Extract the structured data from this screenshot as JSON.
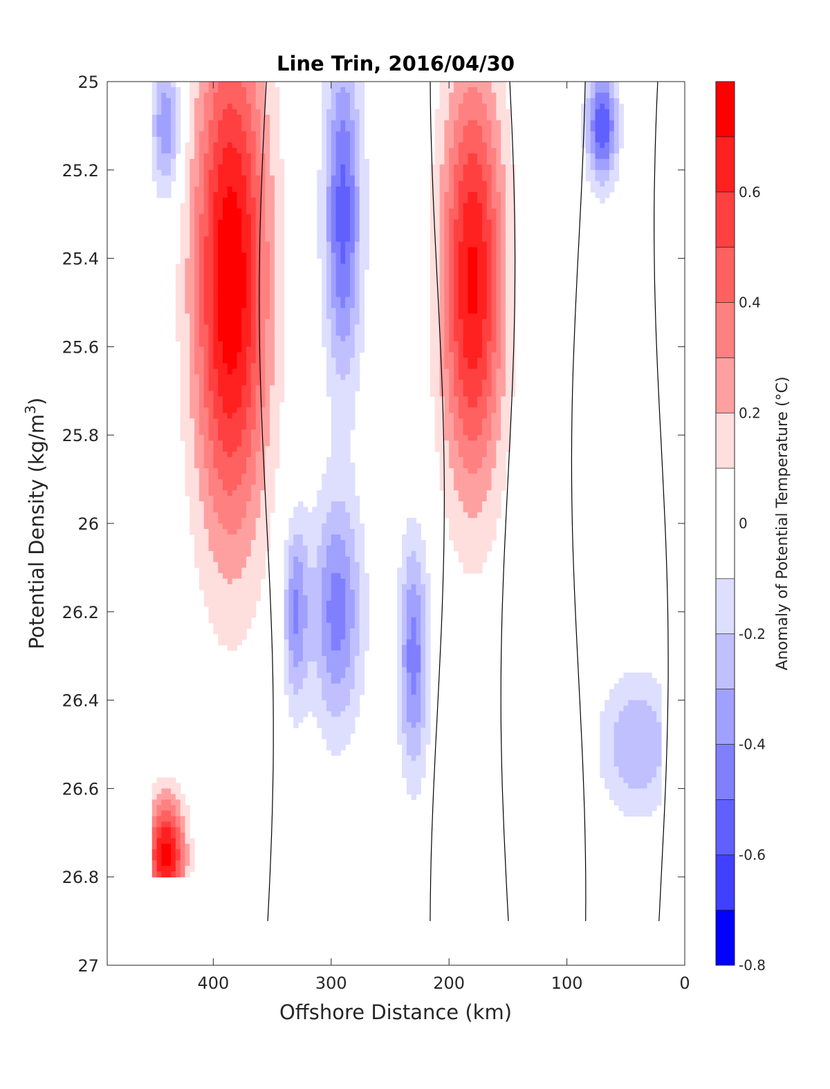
{
  "chart_data": {
    "type": "heatmap",
    "subtype": "filled-contour",
    "title": "Line Trin, 2016/04/30",
    "xlabel": "Offshore Distance (km)",
    "ylabel": "Potential Density (kg/m^3)",
    "ylabel_parts": {
      "text": "Potential Density (kg/m",
      "superscript": "3",
      "suffix": ")"
    },
    "xlim": [
      490,
      0
    ],
    "x_reversed": true,
    "ylim": [
      25,
      27
    ],
    "y_reversed": true,
    "x_tick_values": [
      400,
      300,
      200,
      100,
      0
    ],
    "x_tick_labels": [
      "400",
      "300",
      "200",
      "100",
      "0"
    ],
    "y_tick_values": [
      25,
      25.2,
      25.4,
      25.6,
      25.8,
      26,
      26.2,
      26.4,
      26.6,
      26.8,
      27
    ],
    "y_tick_labels": [
      "25",
      "25.2",
      "25.4",
      "25.6",
      "25.8",
      "26",
      "26.2",
      "26.4",
      "26.6",
      "26.8",
      "27"
    ],
    "colorbar": {
      "label": "Anomaly of Potential Temperature (°C)",
      "range": [
        -0.8,
        0.8
      ],
      "tick_values": [
        0.6,
        0.4,
        0.2,
        0,
        -0.2,
        -0.4,
        -0.6,
        -0.8
      ],
      "tick_labels": [
        "0.6",
        "0.4",
        "0.2",
        "0",
        "-0.2",
        "-0.4",
        "-0.6",
        "-0.8"
      ],
      "levels": [
        {
          "from": 0.7,
          "to": 0.8,
          "color": "#ff0000"
        },
        {
          "from": 0.6,
          "to": 0.7,
          "color": "#ff2020"
        },
        {
          "from": 0.5,
          "to": 0.6,
          "color": "#ff4040"
        },
        {
          "from": 0.4,
          "to": 0.5,
          "color": "#ff6060"
        },
        {
          "from": 0.3,
          "to": 0.4,
          "color": "#ff8080"
        },
        {
          "from": 0.2,
          "to": 0.3,
          "color": "#ffa0a0"
        },
        {
          "from": 0.1,
          "to": 0.2,
          "color": "#ffdede"
        },
        {
          "from": -0.1,
          "to": 0.1,
          "color": "#ffffff"
        },
        {
          "from": -0.2,
          "to": -0.1,
          "color": "#dedeff"
        },
        {
          "from": -0.3,
          "to": -0.2,
          "color": "#c0c0ff"
        },
        {
          "from": -0.4,
          "to": -0.3,
          "color": "#a0a0ff"
        },
        {
          "from": -0.5,
          "to": -0.4,
          "color": "#8080ff"
        },
        {
          "from": -0.6,
          "to": -0.5,
          "color": "#6060ff"
        },
        {
          "from": -0.7,
          "to": -0.6,
          "color": "#4040ff"
        },
        {
          "from": -0.8,
          "to": -0.7,
          "color": "#0000ff"
        }
      ]
    },
    "data_extent": {
      "x_min": 20,
      "x_max": 452,
      "y_top": 25,
      "y_bottom_by_x": [
        {
          "x": 452,
          "y": 26.8
        },
        {
          "x": 395,
          "y": 26.8
        },
        {
          "x": 382,
          "y": 26.9
        },
        {
          "x": 325,
          "y": 26.9
        },
        {
          "x": 20,
          "y": 26.9
        }
      ]
    },
    "field_features": [
      {
        "kind": "warm-core",
        "x_center": 385,
        "x_halfwidth": 30,
        "y_center": 25.45,
        "y_spread": 0.55,
        "peak": 0.8,
        "description": "strong positive anomaly"
      },
      {
        "kind": "warm-core",
        "x_center": 180,
        "x_halfwidth": 25,
        "y_center": 25.45,
        "y_spread": 0.45,
        "peak": 0.72
      },
      {
        "kind": "warm-patch",
        "x_center": 440,
        "x_halfwidth": 15,
        "y_center": 26.75,
        "y_spread": 0.12,
        "peak": 0.75
      },
      {
        "kind": "cold-core",
        "x_center": 290,
        "x_halfwidth": 15,
        "y_center": 25.3,
        "y_spread": 0.35,
        "peak": -0.55
      },
      {
        "kind": "cold-core",
        "x_center": 295,
        "x_halfwidth": 20,
        "y_center": 26.2,
        "y_spread": 0.25,
        "peak": -0.45
      },
      {
        "kind": "cold-core",
        "x_center": 330,
        "x_halfwidth": 10,
        "y_center": 26.2,
        "y_spread": 0.2,
        "peak": -0.4
      },
      {
        "kind": "cold-core",
        "x_center": 230,
        "x_halfwidth": 12,
        "y_center": 26.3,
        "y_spread": 0.25,
        "peak": -0.45
      },
      {
        "kind": "cold-core",
        "x_center": 70,
        "x_halfwidth": 12,
        "y_center": 25.1,
        "y_spread": 0.12,
        "peak": -0.6
      },
      {
        "kind": "cold-patch",
        "x_center": 40,
        "x_halfwidth": 30,
        "y_center": 26.5,
        "y_spread": 0.15,
        "peak": -0.3
      },
      {
        "kind": "cold-patch",
        "x_center": 440,
        "x_halfwidth": 12,
        "y_center": 25.1,
        "y_spread": 0.15,
        "peak": -0.4
      }
    ],
    "zero_contour_x_positions": [
      355,
      210,
      150,
      90,
      20
    ],
    "grid": false
  }
}
